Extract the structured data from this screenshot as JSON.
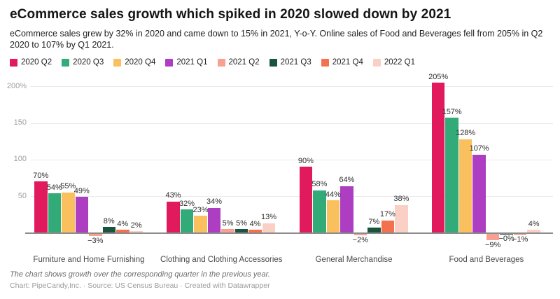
{
  "header": {
    "title": "eCommerce sales growth which spiked in 2020 slowed down by 2021",
    "description": "eCommerce sales grew by 32% in 2020 and came down to 15% in 2021, Y-o-Y.  Online sales of Food and Beverages fell from 205% in Q2 2020 to 107% by Q1 2021."
  },
  "chart_data": {
    "type": "bar",
    "grouped": true,
    "title": "eCommerce sales growth which spiked in 2020 slowed down by 2021",
    "categories": [
      "Furniture and Home Furnishing",
      "Clothing and Clothing Accessories",
      "General Merchandise",
      "Food and Beverages"
    ],
    "series": [
      {
        "name": "2020 Q2",
        "color": "#e01a5c",
        "values": [
          70,
          43,
          90,
          205
        ],
        "labels": [
          "70%",
          "43%",
          "90%",
          "205%"
        ]
      },
      {
        "name": "2020 Q3",
        "color": "#33ab79",
        "values": [
          54,
          32,
          58,
          157
        ],
        "labels": [
          "54%",
          "32%",
          "58%",
          "157%"
        ]
      },
      {
        "name": "2020 Q4",
        "color": "#fac05e",
        "values": [
          55,
          23,
          44,
          128
        ],
        "labels": [
          "55%",
          "23%",
          "44%",
          "128%"
        ]
      },
      {
        "name": "2021 Q1",
        "color": "#ae3ec1",
        "values": [
          49,
          34,
          64,
          107
        ],
        "labels": [
          "49%",
          "34%",
          "64%",
          "107%"
        ]
      },
      {
        "name": "2021 Q2",
        "color": "#f8a193",
        "values": [
          -3,
          5,
          -2,
          -9
        ],
        "labels": [
          "−3%",
          "5%",
          "−2%",
          "−9%"
        ]
      },
      {
        "name": "2021 Q3",
        "color": "#19543f",
        "values": [
          8,
          5,
          7,
          -0.3
        ],
        "labels": [
          "8%",
          "5%",
          "7%",
          "−0%"
        ]
      },
      {
        "name": "2021 Q4",
        "color": "#f3714f",
        "values": [
          4,
          4,
          17,
          -1
        ],
        "labels": [
          "4%",
          "4%",
          "17%",
          "−1%"
        ]
      },
      {
        "name": "2022 Q1",
        "color": "#fbd0c4",
        "values": [
          2,
          13,
          38,
          4
        ],
        "labels": [
          "2%",
          "13%",
          "38%",
          "4%"
        ]
      }
    ],
    "y_axis": {
      "unit": "%",
      "ticks": [
        {
          "value": 200,
          "label": "200%"
        },
        {
          "value": 150,
          "label": "150"
        },
        {
          "value": 100,
          "label": "100"
        },
        {
          "value": 50,
          "label": "50"
        }
      ],
      "baseline": 0,
      "range": [
        -25,
        223
      ]
    },
    "grid": true,
    "legend_position": "top"
  },
  "footer": {
    "note": "The chart shows growth over the corresponding quarter in the previous year.",
    "byline": "Chart: PipeCandy,Inc. · Source: US Census Bureau · Created with Datawrapper"
  }
}
